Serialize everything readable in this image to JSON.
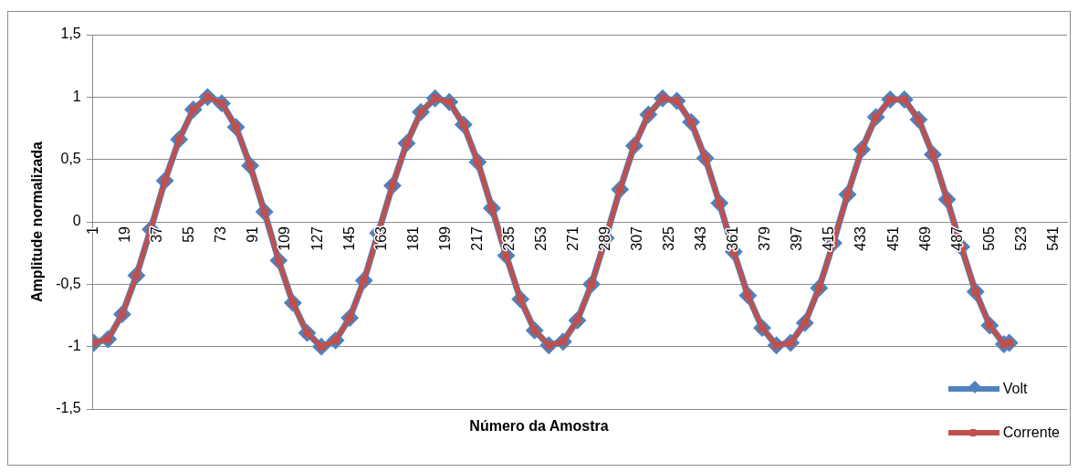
{
  "chart_data": {
    "type": "line",
    "xlabel": "Número da Amostra",
    "ylabel": "Amplitude normalizada",
    "x": [
      1,
      9,
      17,
      25,
      33,
      41,
      49,
      57,
      65,
      73,
      81,
      89,
      97,
      105,
      113,
      121,
      129,
      137,
      145,
      153,
      161,
      169,
      177,
      185,
      193,
      201,
      209,
      217,
      225,
      233,
      241,
      249,
      257,
      265,
      273,
      281,
      289,
      297,
      305,
      313,
      321,
      329,
      337,
      345,
      353,
      361,
      369,
      377,
      385,
      393,
      401,
      409,
      417,
      425,
      433,
      441,
      449,
      457,
      465,
      473,
      481,
      489,
      497,
      505,
      513,
      516
    ],
    "xlim": [
      0.5,
      548.5
    ],
    "xticks": [
      1,
      19,
      37,
      55,
      73,
      91,
      109,
      127,
      145,
      163,
      181,
      199,
      217,
      235,
      253,
      271,
      289,
      307,
      325,
      343,
      361,
      379,
      397,
      415,
      433,
      451,
      469,
      487,
      505,
      523,
      541
    ],
    "ylim": [
      -1.5,
      1.5
    ],
    "yticks": [
      {
        "value": -1.5,
        "label": "-1,5"
      },
      -1,
      {
        "value": -0.5,
        "label": "-0,5"
      },
      0,
      {
        "value": 0.5,
        "label": "0,5"
      },
      1,
      {
        "value": 1.5,
        "label": "1,5"
      }
    ],
    "grid": "y",
    "legend": "bottom right",
    "line_style": "solid",
    "series": [
      {
        "name": "Volt",
        "color": "#4f81bd",
        "marker": "diamond",
        "values": [
          -0.97,
          -0.94,
          -0.74,
          -0.43,
          -0.06,
          0.33,
          0.66,
          0.9,
          1,
          0.95,
          0.76,
          0.45,
          0.08,
          -0.31,
          -0.65,
          -0.89,
          -1,
          -0.95,
          -0.77,
          -0.47,
          -0.09,
          0.29,
          0.63,
          0.88,
          0.99,
          0.96,
          0.78,
          0.48,
          0.11,
          -0.27,
          -0.62,
          -0.87,
          -0.99,
          -0.96,
          -0.79,
          -0.5,
          -0.13,
          0.26,
          0.61,
          0.86,
          0.99,
          0.97,
          0.8,
          0.51,
          0.15,
          -0.24,
          -0.59,
          -0.85,
          -0.99,
          -0.97,
          -0.81,
          -0.53,
          -0.17,
          0.22,
          0.58,
          0.84,
          0.98,
          0.98,
          0.82,
          0.54,
          0.18,
          -0.2,
          -0.56,
          -0.83,
          -0.98,
          -0.97
        ]
      },
      {
        "name": "Corrente",
        "color": "#c0504d",
        "marker": "square",
        "values": [
          -0.97,
          -0.94,
          -0.74,
          -0.43,
          -0.06,
          0.33,
          0.66,
          0.9,
          1,
          0.95,
          0.76,
          0.45,
          0.08,
          -0.31,
          -0.65,
          -0.89,
          -1,
          -0.95,
          -0.77,
          -0.47,
          -0.09,
          0.29,
          0.63,
          0.88,
          0.99,
          0.96,
          0.78,
          0.48,
          0.11,
          -0.27,
          -0.62,
          -0.87,
          -0.99,
          -0.96,
          -0.79,
          -0.5,
          -0.13,
          0.26,
          0.61,
          0.86,
          0.99,
          0.97,
          0.8,
          0.51,
          0.15,
          -0.24,
          -0.59,
          -0.85,
          -0.99,
          -0.97,
          -0.81,
          -0.53,
          -0.17,
          0.22,
          0.58,
          0.84,
          0.98,
          0.98,
          0.82,
          0.54,
          0.18,
          -0.2,
          -0.56,
          -0.83,
          -0.98,
          -0.97
        ]
      }
    ]
  }
}
